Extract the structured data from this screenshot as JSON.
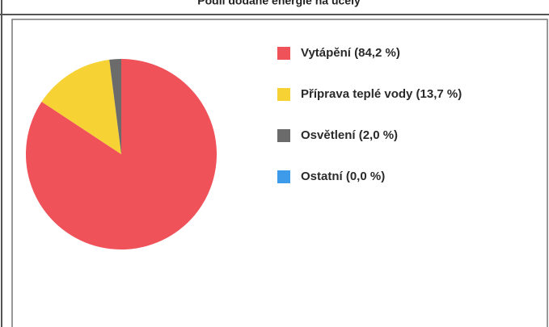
{
  "chart_data": {
    "type": "pie",
    "title": "Podíl dodané energie na účely",
    "categories": [
      "Vytápění (84,2 %)",
      "Příprava teplé vody (13,7 %)",
      "Osvětlení (2,0 %)",
      "Ostatní (0,0 %)"
    ],
    "values": [
      84.2,
      13.7,
      2.0,
      0.0
    ],
    "colors": [
      "#f0525a",
      "#f7d234",
      "#6b6b6b",
      "#3d9be9"
    ],
    "legend": "right"
  }
}
